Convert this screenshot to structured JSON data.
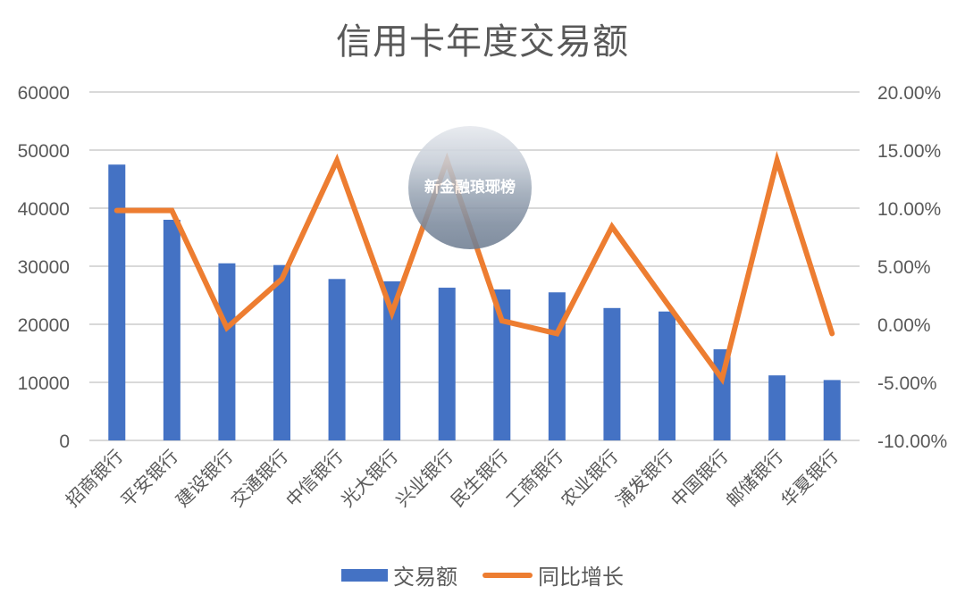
{
  "chart_data": {
    "type": "bar+line",
    "title": "信用卡年度交易额",
    "categories": [
      "招商银行",
      "平安银行",
      "建设银行",
      "交通银行",
      "中信银行",
      "光大银行",
      "兴业银行",
      "民生银行",
      "工商银行",
      "农业银行",
      "浦发银行",
      "中国银行",
      "邮储银行",
      "华夏银行"
    ],
    "series": [
      {
        "name": "交易额",
        "type": "bar",
        "axis": "left",
        "color": "#4472C4",
        "values": [
          47500,
          38000,
          30500,
          30200,
          27800,
          27400,
          26300,
          26000,
          25500,
          22800,
          22200,
          15700,
          11200,
          10400
        ]
      },
      {
        "name": "同比增长",
        "type": "line",
        "axis": "right",
        "color": "#ED7D31",
        "unit": "%",
        "values": [
          9.8,
          9.8,
          -0.3,
          3.9,
          14.1,
          1.0,
          14.1,
          0.3,
          -0.8,
          8.4,
          1.8,
          -4.7,
          14.1,
          -0.8
        ]
      }
    ],
    "left_axis": {
      "ylim": [
        0,
        60000
      ],
      "ticks": [
        "0",
        "10000",
        "20000",
        "30000",
        "40000",
        "50000",
        "60000"
      ]
    },
    "right_axis": {
      "ylim": [
        -10,
        20
      ],
      "ticks": [
        "-10.00%",
        "-5.00%",
        "0.00%",
        "5.00%",
        "10.00%",
        "15.00%",
        "20.00%"
      ]
    },
    "xlabel": "",
    "ylabel": "",
    "grid": true,
    "legend_position": "bottom"
  },
  "watermark": {
    "text": "新金融琅琊榜"
  }
}
